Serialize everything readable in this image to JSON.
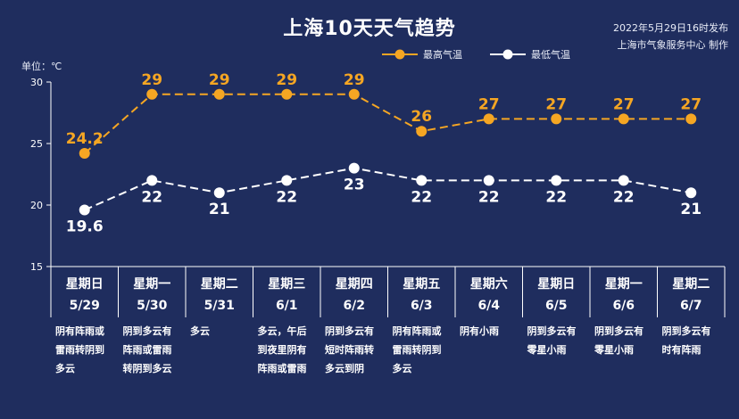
{
  "header": {
    "title": "上海10天天气趋势",
    "publish_line1": "2022年5月29日16时发布",
    "publish_line2": "上海市气象服务中心 制作"
  },
  "colors": {
    "background": "#1f2d5e",
    "high_line": "#f5a623",
    "low_line": "#ffffff",
    "grid": "#ffffff"
  },
  "chart_data": {
    "type": "line",
    "y_unit_label": "单位：℃",
    "ylim": [
      15,
      30
    ],
    "yticks": [
      15,
      20,
      25,
      30
    ],
    "grid": false,
    "legend_position": "top-right",
    "categories": [
      {
        "weekday": "星期日",
        "date": "5/29",
        "condition": "阴有阵雨或\n雷雨转阴到\n多云"
      },
      {
        "weekday": "星期一",
        "date": "5/30",
        "condition": "阴到多云有\n阵雨或雷雨\n转阴到多云"
      },
      {
        "weekday": "星期二",
        "date": "5/31",
        "condition": "多云"
      },
      {
        "weekday": "星期三",
        "date": "6/1",
        "condition": "多云，午后\n到夜里阴有\n阵雨或雷雨"
      },
      {
        "weekday": "星期四",
        "date": "6/2",
        "condition": "阴到多云有\n短时阵雨转\n多云到阴"
      },
      {
        "weekday": "星期五",
        "date": "6/3",
        "condition": "阴有阵雨或\n雷雨转阴到\n多云"
      },
      {
        "weekday": "星期六",
        "date": "6/4",
        "condition": "阴有小雨"
      },
      {
        "weekday": "星期日",
        "date": "6/5",
        "condition": "阴到多云有\n零星小雨"
      },
      {
        "weekday": "星期一",
        "date": "6/6",
        "condition": "阴到多云有\n零星小雨"
      },
      {
        "weekday": "星期二",
        "date": "6/7",
        "condition": "阴到多云有\n时有阵雨"
      }
    ],
    "series": [
      {
        "name": "最高气温",
        "values": [
          24.2,
          29,
          29,
          29,
          29,
          26,
          27,
          27,
          27,
          27
        ]
      },
      {
        "name": "最低气温",
        "values": [
          19.6,
          22,
          21,
          22,
          23,
          22,
          22,
          22,
          22,
          21
        ]
      }
    ]
  }
}
